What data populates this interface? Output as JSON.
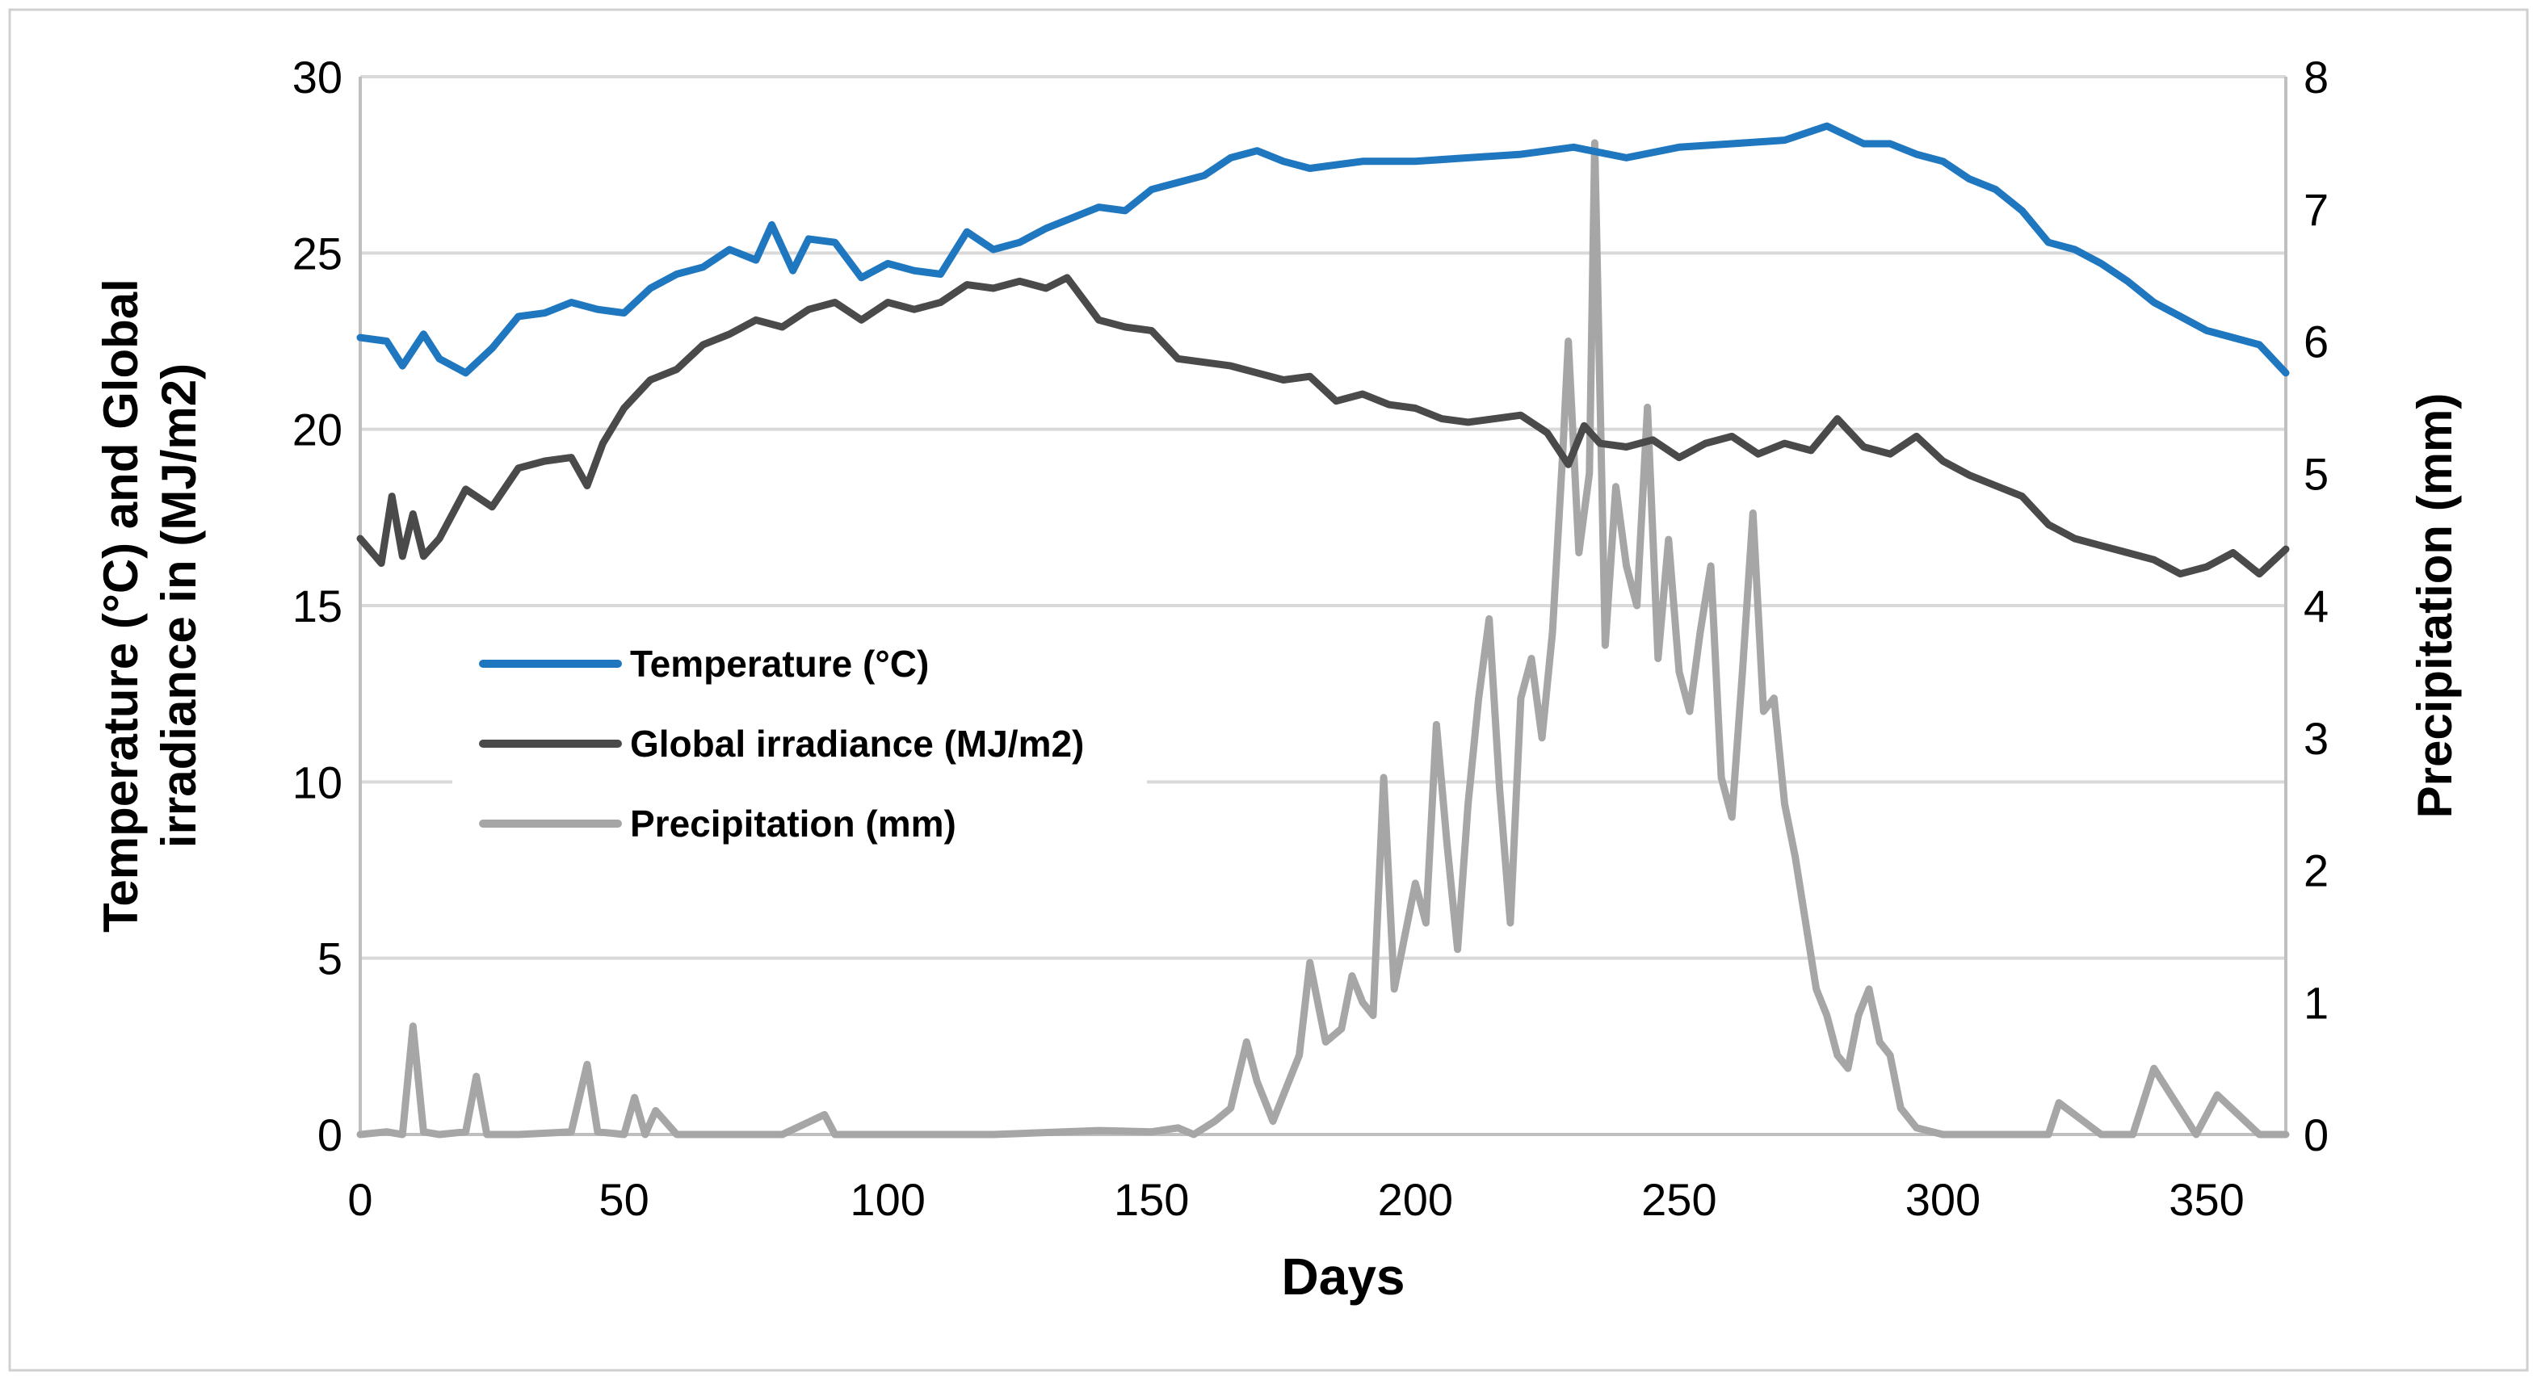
{
  "chart_data": {
    "type": "line",
    "title": "",
    "xlabel": "Days",
    "ylabel_left": "Temperature (°C) and Global irradiance in (MJ/m2)",
    "ylabel_left_lines": [
      "Temperature (°C) and Global",
      "irradiance in (MJ/m2)"
    ],
    "ylabel_right": "Precipitation (mm)",
    "xlim": [
      0,
      365
    ],
    "ylim_left": [
      0,
      30
    ],
    "ylim_right": [
      0,
      8
    ],
    "x_ticks": [
      "0",
      "50",
      "100",
      "150",
      "200",
      "250",
      "300",
      "350"
    ],
    "y_ticks_left": [
      "0",
      "5",
      "10",
      "15",
      "20",
      "25",
      "30"
    ],
    "y_ticks_right": [
      "0",
      "1",
      "2",
      "3",
      "4",
      "5",
      "6",
      "7",
      "8"
    ],
    "grid": "horizontal",
    "legend_position": "center-left",
    "series": [
      {
        "name": "Temperature (°C)",
        "axis": "left",
        "color": "#1f77c0",
        "x": [
          0,
          5,
          8,
          12,
          15,
          20,
          25,
          30,
          35,
          40,
          45,
          50,
          55,
          60,
          65,
          70,
          75,
          78,
          82,
          85,
          90,
          95,
          100,
          105,
          110,
          115,
          120,
          125,
          130,
          135,
          140,
          145,
          150,
          155,
          160,
          165,
          170,
          175,
          180,
          190,
          200,
          210,
          220,
          230,
          240,
          250,
          260,
          270,
          278,
          285,
          290,
          295,
          300,
          305,
          310,
          315,
          320,
          325,
          330,
          335,
          340,
          345,
          350,
          355,
          360,
          365
        ],
        "values": [
          22.6,
          22.5,
          21.8,
          22.7,
          22.0,
          21.6,
          22.3,
          23.2,
          23.3,
          23.6,
          23.4,
          23.3,
          24.0,
          24.4,
          24.6,
          25.1,
          24.8,
          25.8,
          24.5,
          25.4,
          25.3,
          24.3,
          24.7,
          24.5,
          24.4,
          25.6,
          25.1,
          25.3,
          25.7,
          26.0,
          26.3,
          26.2,
          26.8,
          27.0,
          27.2,
          27.7,
          27.9,
          27.6,
          27.4,
          27.6,
          27.6,
          27.7,
          27.8,
          28.0,
          27.7,
          28.0,
          28.1,
          28.2,
          28.6,
          28.1,
          28.1,
          27.8,
          27.6,
          27.1,
          26.8,
          26.2,
          25.3,
          25.1,
          24.7,
          24.2,
          23.6,
          23.2,
          22.8,
          22.6,
          22.4,
          21.6
        ]
      },
      {
        "name": "Global irradiance (MJ/m2)",
        "axis": "left",
        "color": "#4a4a4a",
        "x": [
          0,
          4,
          6,
          8,
          10,
          12,
          15,
          20,
          25,
          30,
          35,
          40,
          43,
          46,
          50,
          55,
          60,
          65,
          70,
          75,
          80,
          85,
          90,
          95,
          100,
          105,
          110,
          115,
          120,
          125,
          130,
          134,
          140,
          145,
          150,
          155,
          160,
          165,
          170,
          175,
          180,
          185,
          190,
          195,
          200,
          205,
          210,
          215,
          220,
          225,
          229,
          232,
          235,
          240,
          245,
          250,
          255,
          260,
          265,
          270,
          275,
          280,
          285,
          290,
          295,
          300,
          305,
          310,
          315,
          320,
          325,
          330,
          335,
          340,
          345,
          350,
          355,
          360,
          365
        ],
        "values": [
          16.9,
          16.2,
          18.1,
          16.4,
          17.6,
          16.4,
          16.9,
          18.3,
          17.8,
          18.9,
          19.1,
          19.2,
          18.4,
          19.6,
          20.6,
          21.4,
          21.7,
          22.4,
          22.7,
          23.1,
          22.9,
          23.4,
          23.6,
          23.1,
          23.6,
          23.4,
          23.6,
          24.1,
          24.0,
          24.2,
          24.0,
          24.3,
          23.1,
          22.9,
          22.8,
          22.0,
          21.9,
          21.8,
          21.6,
          21.4,
          21.5,
          20.8,
          21.0,
          20.7,
          20.6,
          20.3,
          20.2,
          20.3,
          20.4,
          19.9,
          19.0,
          20.1,
          19.6,
          19.5,
          19.7,
          19.2,
          19.6,
          19.8,
          19.3,
          19.6,
          19.4,
          20.3,
          19.5,
          19.3,
          19.8,
          19.1,
          18.7,
          18.4,
          18.1,
          17.3,
          16.9,
          16.7,
          16.5,
          16.3,
          15.9,
          16.1,
          16.5,
          15.9,
          16.6
        ]
      },
      {
        "name": "Precipitation (mm)",
        "axis": "right",
        "color": "#a6a6a6",
        "x": [
          0,
          5,
          8,
          10,
          12,
          15,
          20,
          22,
          24,
          30,
          40,
          43,
          45,
          50,
          52,
          54,
          56,
          60,
          80,
          88,
          90,
          100,
          120,
          140,
          150,
          155,
          158,
          162,
          165,
          168,
          170,
          173,
          175,
          178,
          180,
          183,
          186,
          188,
          190,
          192,
          194,
          196,
          198,
          200,
          202,
          204,
          206,
          208,
          210,
          212,
          214,
          216,
          218,
          220,
          222,
          224,
          226,
          228,
          229,
          231,
          233,
          234,
          236,
          238,
          240,
          242,
          244,
          246,
          248,
          250,
          252,
          254,
          256,
          258,
          260,
          262,
          264,
          266,
          268,
          270,
          272,
          274,
          276,
          278,
          280,
          282,
          284,
          286,
          288,
          290,
          292,
          295,
          298,
          300,
          310,
          320,
          322,
          330,
          336,
          340,
          348,
          352,
          360,
          365
        ],
        "values": [
          0.0,
          0.02,
          0.0,
          0.82,
          0.02,
          0.0,
          0.02,
          0.44,
          0.0,
          0.0,
          0.02,
          0.53,
          0.02,
          0.0,
          0.28,
          0.0,
          0.18,
          0.0,
          0.0,
          0.15,
          0.0,
          0.0,
          0.0,
          0.03,
          0.02,
          0.05,
          0.0,
          0.1,
          0.2,
          0.7,
          0.4,
          0.1,
          0.3,
          0.6,
          1.3,
          0.7,
          0.8,
          1.2,
          1.0,
          0.9,
          2.7,
          1.1,
          1.5,
          1.9,
          1.6,
          3.1,
          2.2,
          1.4,
          2.5,
          3.3,
          3.9,
          2.6,
          1.6,
          3.3,
          3.6,
          3.0,
          3.8,
          5.2,
          6.0,
          4.4,
          5.0,
          7.5,
          3.7,
          4.9,
          4.3,
          4.0,
          5.5,
          3.6,
          4.5,
          3.5,
          3.2,
          3.8,
          4.3,
          2.7,
          2.4,
          3.5,
          4.7,
          3.2,
          3.3,
          2.5,
          2.1,
          1.6,
          1.1,
          0.9,
          0.6,
          0.5,
          0.9,
          1.1,
          0.7,
          0.6,
          0.2,
          0.05,
          0.02,
          0.0,
          0.0,
          0.0,
          0.24,
          0.0,
          0.0,
          0.5,
          0.0,
          0.3,
          0.0,
          0.0
        ]
      }
    ]
  },
  "legend": {
    "items": [
      {
        "label": "Temperature (°C)",
        "color": "#1f77c0"
      },
      {
        "label": "Global irradiance (MJ/m2)",
        "color": "#4a4a4a"
      },
      {
        "label": "Precipitation (mm)",
        "color": "#a6a6a6"
      }
    ]
  }
}
